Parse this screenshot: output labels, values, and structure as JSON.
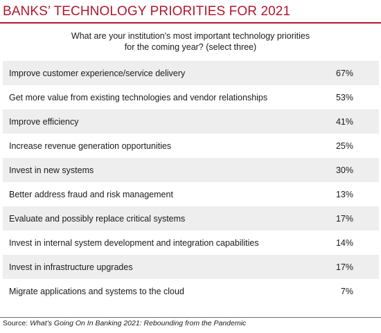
{
  "chart_data": {
    "type": "table",
    "title": "BANKS’ TECHNOLOGY PRIORITIES FOR 2021",
    "question": [
      "What are your institution's most important technology priorities",
      "for the coming year? (select three)"
    ],
    "rows": [
      {
        "label": "Improve customer experience/service delivery",
        "value": "67%"
      },
      {
        "label": "Get more value from existing technologies and vendor relationships",
        "value": "53%"
      },
      {
        "label": "Improve efficiency",
        "value": "41%"
      },
      {
        "label": "Increase revenue generation opportunities",
        "value": "25%"
      },
      {
        "label": "Invest in new systems",
        "value": "30%"
      },
      {
        "label": "Better address fraud and risk management",
        "value": "13%"
      },
      {
        "label": "Evaluate and possibly replace critical systems",
        "value": "17%"
      },
      {
        "label": "Invest in internal system development and integration capabilities",
        "value": "14%"
      },
      {
        "label": "Invest in infrastructure upgrades",
        "value": "17%"
      },
      {
        "label": "Migrate applications and systems to the cloud",
        "value": "7%"
      }
    ],
    "source": {
      "prefix": "Source: ",
      "reference": "What’s Going On In Banking 2021: Rebounding from the Pandemic"
    }
  },
  "colors": {
    "accent": "#b0172d",
    "row_shade": "#eeeeee"
  }
}
